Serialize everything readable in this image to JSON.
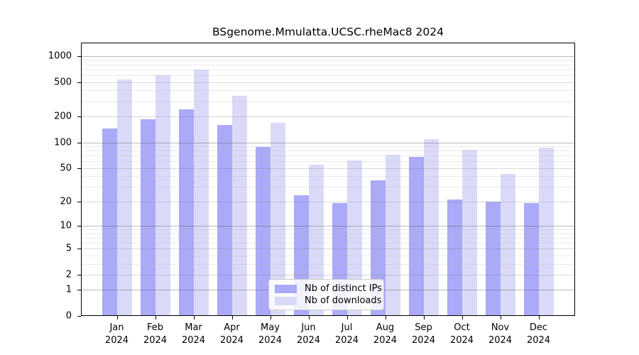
{
  "chart_data": {
    "type": "bar",
    "title": "BSgenome.Mmulatta.UCSC.rheMac8 2024",
    "categories": [
      "Jan 2024",
      "Feb 2024",
      "Mar 2024",
      "Apr 2024",
      "May 2024",
      "Jun 2024",
      "Jul 2024",
      "Aug 2024",
      "Sep 2024",
      "Oct 2024",
      "Nov 2024",
      "Dec 2024"
    ],
    "series": [
      {
        "name": "Nb of distinct IPs",
        "color": "#aaaaf8",
        "values": [
          146,
          186,
          243,
          160,
          88,
          24,
          19,
          36,
          67,
          21,
          20,
          19
        ]
      },
      {
        "name": "Nb of downloads",
        "color": "#dadaf8",
        "values": [
          540,
          600,
          700,
          350,
          168,
          55,
          61,
          72,
          110,
          82,
          43,
          87
        ]
      }
    ],
    "xlabel": "",
    "ylabel": "",
    "y_ticks": [
      0,
      1,
      2,
      5,
      10,
      20,
      50,
      100,
      200,
      500,
      1000
    ],
    "y_scale": "log10(value+1), 0 at baseline",
    "ylim": [
      0,
      1400
    ],
    "grid": true,
    "grid_minor": true,
    "legend_position": "lower center inside plot",
    "colors": {
      "bar_distinct_ips": "#aaaaf8",
      "bar_downloads": "#dadaf8",
      "grid_major": "#bababa",
      "grid_minor": "#e8e8e8",
      "frame": "#000000",
      "background": "#ffffff"
    }
  }
}
